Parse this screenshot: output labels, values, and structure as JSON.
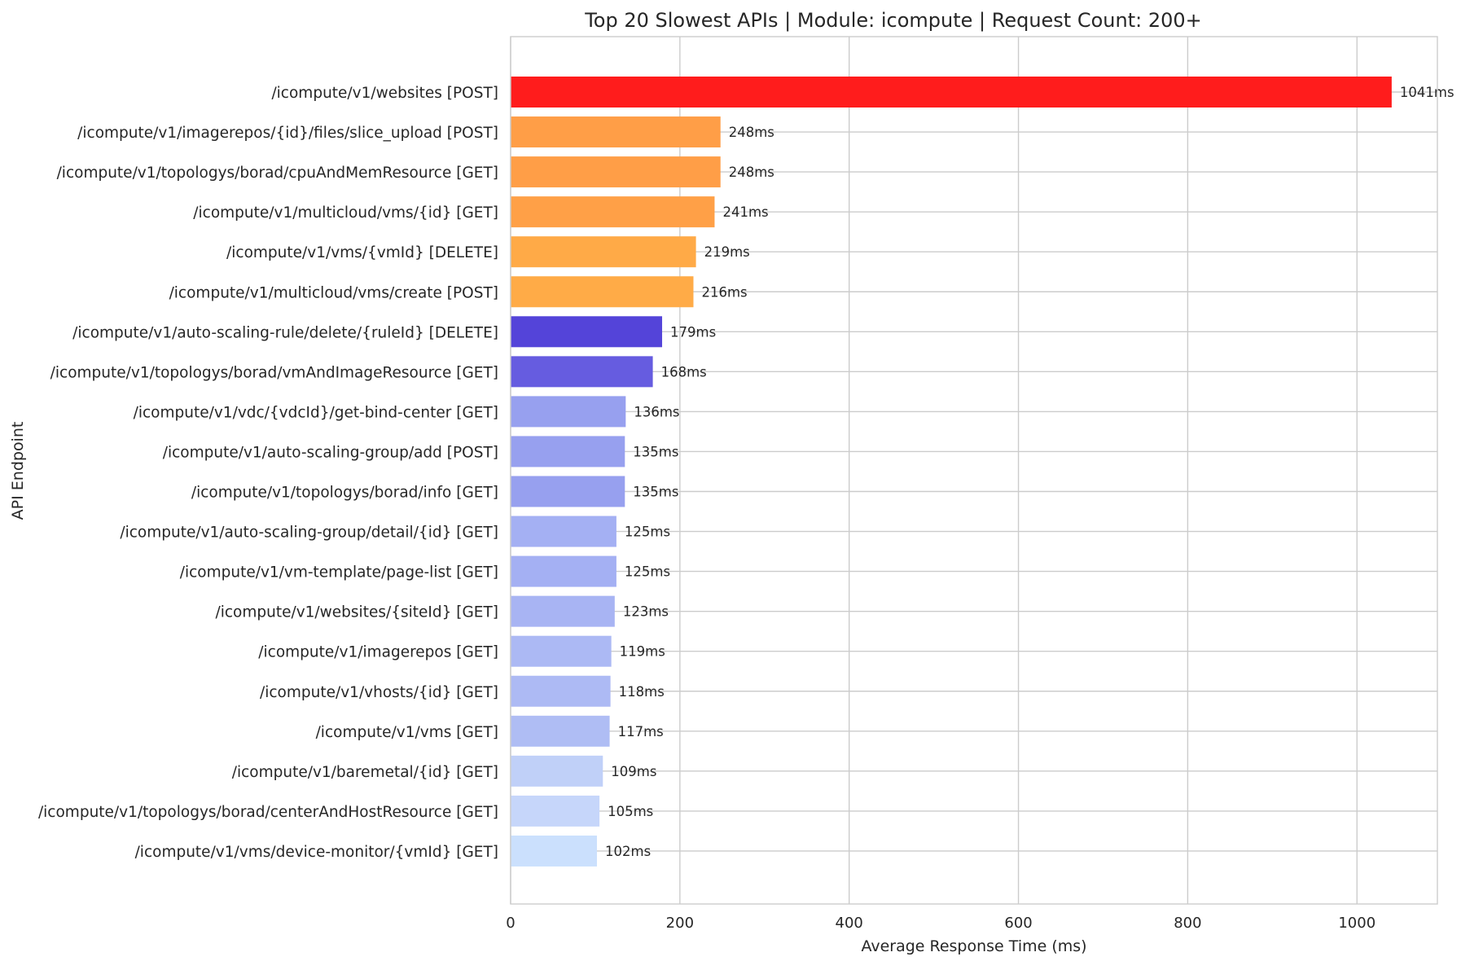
{
  "chart_data": {
    "type": "bar",
    "orientation": "horizontal",
    "title": "Top 20 Slowest APIs | Module: icompute | Request Count: 200+",
    "xlabel": "Average Response Time (ms)",
    "ylabel": "API Endpoint",
    "xlim": [
      0,
      1095
    ],
    "xticks": [
      0,
      200,
      400,
      600,
      800,
      1000
    ],
    "grid": true,
    "legend": "none",
    "value_suffix": "ms",
    "categories": [
      "/icompute/v1/websites [POST]",
      "/icompute/v1/imagerepos/{id}/files/slice_upload [POST]",
      "/icompute/v1/topologys/borad/cpuAndMemResource [GET]",
      "/icompute/v1/multicloud/vms/{id} [GET]",
      "/icompute/v1/vms/{vmId} [DELETE]",
      "/icompute/v1/multicloud/vms/create [POST]",
      "/icompute/v1/auto-scaling-rule/delete/{ruleId} [DELETE]",
      "/icompute/v1/topologys/borad/vmAndImageResource [GET]",
      "/icompute/v1/vdc/{vdcId}/get-bind-center [GET]",
      "/icompute/v1/auto-scaling-group/add [POST]",
      "/icompute/v1/topologys/borad/info [GET]",
      "/icompute/v1/auto-scaling-group/detail/{id} [GET]",
      "/icompute/v1/vm-template/page-list [GET]",
      "/icompute/v1/websites/{siteId} [GET]",
      "/icompute/v1/imagerepos [GET]",
      "/icompute/v1/vhosts/{id} [GET]",
      "/icompute/v1/vms [GET]",
      "/icompute/v1/baremetal/{id} [GET]",
      "/icompute/v1/topologys/borad/centerAndHostResource [GET]",
      "/icompute/v1/vms/device-monitor/{vmId} [GET]"
    ],
    "values": [
      1041,
      248,
      248,
      241,
      219,
      216,
      179,
      168,
      136,
      135,
      135,
      125,
      125,
      123,
      119,
      118,
      117,
      109,
      105,
      102
    ],
    "bar_labels": [
      "1041ms",
      "248ms",
      "248ms",
      "241ms",
      "219ms",
      "216ms",
      "179ms",
      "168ms",
      "136ms",
      "135ms",
      "135ms",
      "125ms",
      "125ms",
      "123ms",
      "119ms",
      "118ms",
      "117ms",
      "109ms",
      "105ms",
      "102ms"
    ],
    "colors": [
      "#ff1c1c",
      "#ff9e47",
      "#ff9e47",
      "#ffa047",
      "#ffaa47",
      "#ffab47",
      "#5444d9",
      "#665ce0",
      "#97a0ef",
      "#97a0ef",
      "#97a0ef",
      "#a4b0f3",
      "#a4b0f3",
      "#a8b4f3",
      "#acb9f4",
      "#adbaf4",
      "#afbdf4",
      "#c0d0f8",
      "#c6d6fa",
      "#cbe0fd"
    ]
  }
}
